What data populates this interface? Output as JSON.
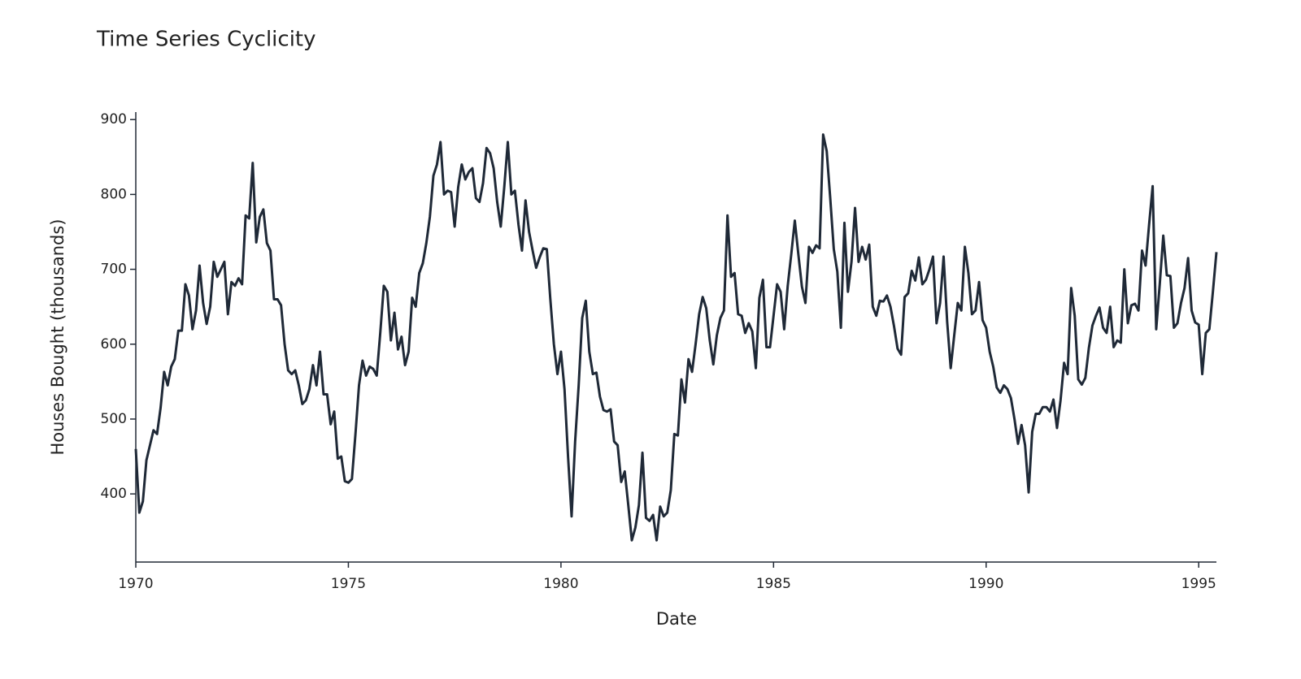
{
  "chart_data": {
    "type": "line",
    "title": "Time Series Cyclicity",
    "xlabel": "Date",
    "ylabel": "Houses Bought (thousands)",
    "color": "#1f2937",
    "x": [
      "1970-01",
      "1970-02",
      "1970-03",
      "1970-04",
      "1970-05",
      "1970-06",
      "1970-07",
      "1970-08",
      "1970-09",
      "1970-10",
      "1970-11",
      "1970-12",
      "1971-01",
      "1971-02",
      "1971-03",
      "1971-04",
      "1971-05",
      "1971-06",
      "1971-07",
      "1971-08",
      "1971-09",
      "1971-10",
      "1971-11",
      "1971-12",
      "1972-01",
      "1972-02",
      "1972-03",
      "1972-04",
      "1972-05",
      "1972-06",
      "1972-07",
      "1972-08",
      "1972-09",
      "1972-10",
      "1972-11",
      "1972-12",
      "1973-01",
      "1973-02",
      "1973-03",
      "1973-04",
      "1973-05",
      "1973-06",
      "1973-07",
      "1973-08",
      "1973-09",
      "1973-10",
      "1973-11",
      "1973-12",
      "1974-01",
      "1974-02",
      "1974-03",
      "1974-04",
      "1974-05",
      "1974-06",
      "1974-07",
      "1974-08",
      "1974-09",
      "1974-10",
      "1974-11",
      "1974-12",
      "1975-01",
      "1975-02",
      "1975-03",
      "1975-04",
      "1975-05",
      "1975-06",
      "1975-07",
      "1975-08",
      "1975-09",
      "1975-10",
      "1975-11",
      "1975-12",
      "1976-01",
      "1976-02",
      "1976-03",
      "1976-04",
      "1976-05",
      "1976-06",
      "1976-07",
      "1976-08",
      "1976-09",
      "1976-10",
      "1976-11",
      "1976-12",
      "1977-01",
      "1977-02",
      "1977-03",
      "1977-04",
      "1977-05",
      "1977-06",
      "1977-07",
      "1977-08",
      "1977-09",
      "1977-10",
      "1977-11",
      "1977-12",
      "1978-01",
      "1978-02",
      "1978-03",
      "1978-04",
      "1978-05",
      "1978-06",
      "1978-07",
      "1978-08",
      "1978-09",
      "1978-10",
      "1978-11",
      "1978-12",
      "1979-01",
      "1979-02",
      "1979-03",
      "1979-04",
      "1979-05",
      "1979-06",
      "1979-07",
      "1979-08",
      "1979-09",
      "1979-10",
      "1979-11",
      "1979-12",
      "1980-01",
      "1980-02",
      "1980-03",
      "1980-04",
      "1980-05",
      "1980-06",
      "1980-07",
      "1980-08",
      "1980-09",
      "1980-10",
      "1980-11",
      "1980-12",
      "1981-01",
      "1981-02",
      "1981-03",
      "1981-04",
      "1981-05",
      "1981-06",
      "1981-07",
      "1981-08",
      "1981-09",
      "1981-10",
      "1981-11",
      "1981-12",
      "1982-01",
      "1982-02",
      "1982-03",
      "1982-04",
      "1982-05",
      "1982-06",
      "1982-07",
      "1982-08",
      "1982-09",
      "1982-10",
      "1982-11",
      "1982-12",
      "1983-01",
      "1983-02",
      "1983-03",
      "1983-04",
      "1983-05",
      "1983-06",
      "1983-07",
      "1983-08",
      "1983-09",
      "1983-10",
      "1983-11",
      "1983-12",
      "1984-01",
      "1984-02",
      "1984-03",
      "1984-04",
      "1984-05",
      "1984-06",
      "1984-07",
      "1984-08",
      "1984-09",
      "1984-10",
      "1984-11",
      "1984-12",
      "1985-01",
      "1985-02",
      "1985-03",
      "1985-04",
      "1985-05",
      "1985-06",
      "1985-07",
      "1985-08",
      "1985-09",
      "1985-10",
      "1985-11",
      "1985-12",
      "1986-01",
      "1986-02",
      "1986-03",
      "1986-04",
      "1986-05",
      "1986-06",
      "1986-07",
      "1986-08",
      "1986-09",
      "1986-10",
      "1986-11",
      "1986-12",
      "1987-01",
      "1987-02",
      "1987-03",
      "1987-04",
      "1987-05",
      "1987-06",
      "1987-07",
      "1987-08",
      "1987-09",
      "1987-10",
      "1987-11",
      "1987-12",
      "1988-01",
      "1988-02",
      "1988-03",
      "1988-04",
      "1988-05",
      "1988-06",
      "1988-07",
      "1988-08",
      "1988-09",
      "1988-10",
      "1988-11",
      "1988-12",
      "1989-01",
      "1989-02",
      "1989-03",
      "1989-04",
      "1989-05",
      "1989-06",
      "1989-07",
      "1989-08",
      "1989-09",
      "1989-10",
      "1989-11",
      "1989-12",
      "1990-01",
      "1990-02",
      "1990-03",
      "1990-04",
      "1990-05",
      "1990-06",
      "1990-07",
      "1990-08",
      "1990-09",
      "1990-10",
      "1990-11",
      "1990-12",
      "1991-01",
      "1991-02",
      "1991-03",
      "1991-04",
      "1991-05",
      "1991-06",
      "1991-07",
      "1991-08",
      "1991-09",
      "1991-10",
      "1991-11",
      "1991-12",
      "1992-01",
      "1992-02",
      "1992-03",
      "1992-04",
      "1992-05",
      "1992-06",
      "1992-07",
      "1992-08",
      "1992-09",
      "1992-10",
      "1992-11",
      "1992-12",
      "1993-01",
      "1993-02",
      "1993-03",
      "1993-04",
      "1993-05",
      "1993-06",
      "1993-07",
      "1993-08",
      "1993-09",
      "1993-10",
      "1993-11",
      "1993-12",
      "1994-01",
      "1994-02",
      "1994-03",
      "1994-04",
      "1994-05",
      "1994-06",
      "1994-07",
      "1994-08",
      "1994-09",
      "1994-10",
      "1994-11",
      "1994-12",
      "1995-01",
      "1995-02",
      "1995-03",
      "1995-04",
      "1995-05",
      "1995-06"
    ],
    "values": [
      460,
      375,
      390,
      445,
      465,
      485,
      480,
      515,
      563,
      545,
      570,
      580,
      618,
      618,
      680,
      665,
      620,
      645,
      705,
      655,
      627,
      650,
      710,
      690,
      700,
      710,
      640,
      683,
      678,
      688,
      680,
      772,
      768,
      842,
      736,
      770,
      780,
      735,
      725,
      660,
      660,
      652,
      600,
      565,
      560,
      565,
      545,
      520,
      525,
      540,
      572,
      545,
      590,
      533,
      533,
      493,
      510,
      447,
      450,
      417,
      415,
      420,
      480,
      545,
      578,
      558,
      570,
      567,
      558,
      615,
      678,
      670,
      605,
      642,
      593,
      610,
      572,
      590,
      662,
      650,
      695,
      708,
      735,
      770,
      825,
      840,
      870,
      800,
      805,
      803,
      757,
      810,
      840,
      820,
      830,
      835,
      795,
      790,
      815,
      862,
      855,
      835,
      790,
      757,
      810,
      870,
      800,
      805,
      760,
      725,
      792,
      750,
      725,
      702,
      716,
      728,
      727,
      660,
      600,
      560,
      590,
      540,
      450,
      370,
      470,
      545,
      635,
      658,
      590,
      560,
      562,
      530,
      512,
      510,
      513,
      470,
      465,
      416,
      430,
      385,
      338,
      355,
      385,
      455,
      368,
      364,
      372,
      338,
      383,
      370,
      375,
      405,
      480,
      478,
      553,
      522,
      580,
      563,
      600,
      640,
      663,
      648,
      605,
      573,
      612,
      635,
      645,
      772,
      690,
      695,
      640,
      638,
      615,
      628,
      617,
      568,
      662,
      686,
      596,
      596,
      638,
      680,
      670,
      620,
      678,
      720,
      765,
      720,
      677,
      655,
      730,
      722,
      732,
      728,
      880,
      858,
      795,
      727,
      697,
      622,
      762,
      670,
      710,
      782,
      710,
      730,
      713,
      733,
      650,
      638,
      658,
      657,
      665,
      650,
      624,
      594,
      586,
      663,
      668,
      698,
      685,
      716,
      680,
      686,
      700,
      717,
      628,
      655,
      717,
      630,
      568,
      612,
      655,
      645,
      730,
      695,
      640,
      645,
      683,
      632,
      622,
      590,
      570,
      542,
      535,
      545,
      540,
      528,
      500,
      467,
      492,
      465,
      402,
      483,
      507,
      507,
      516,
      516,
      510,
      526,
      488,
      525,
      575,
      560,
      675,
      638,
      553,
      546,
      555,
      595,
      625,
      638,
      649,
      622,
      615,
      650,
      596,
      605,
      602,
      700,
      628,
      652,
      654,
      645,
      725,
      705,
      760,
      811,
      620,
      680,
      745,
      692,
      691,
      622,
      628,
      655,
      675,
      715,
      645,
      629,
      626,
      560,
      615,
      620,
      670,
      723
    ],
    "xlim": [
      "1970-01",
      "1995-06"
    ],
    "xticks": [
      1970,
      1975,
      1980,
      1985,
      1990,
      1995
    ],
    "ylim": [
      309,
      910
    ],
    "yticks": [
      400,
      500,
      600,
      700,
      800,
      900
    ]
  }
}
